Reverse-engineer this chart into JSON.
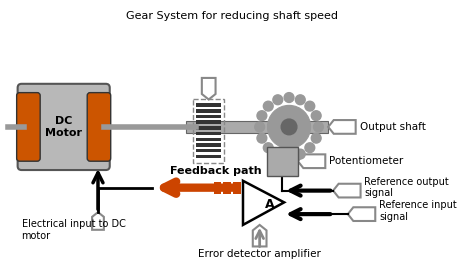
{
  "labels": {
    "gear_system": "Gear System for reducing shaft speed",
    "output_shaft": "Output shaft",
    "potentiometer": "Potentiometer",
    "ref_output": "Reference output\nsignal",
    "ref_input": "Reference input\nsignal",
    "feedback": "Feedback path",
    "electrical_input": "Electrical input to DC\nmotor",
    "error_detector": "Error detector amplifier",
    "dc_motor": "DC\nMotor",
    "A_label": "A"
  },
  "motor_color": "#b8b8b8",
  "motor_cap_color": "#cc5500",
  "shaft_color": "#999999",
  "gear_color": "#999999",
  "gear_dark": "#555555",
  "pot_color": "#999999",
  "amp_arrow_color": "#cc4400",
  "arrow_color": "#aaaaaa",
  "black": "#000000",
  "white": "#ffffff"
}
